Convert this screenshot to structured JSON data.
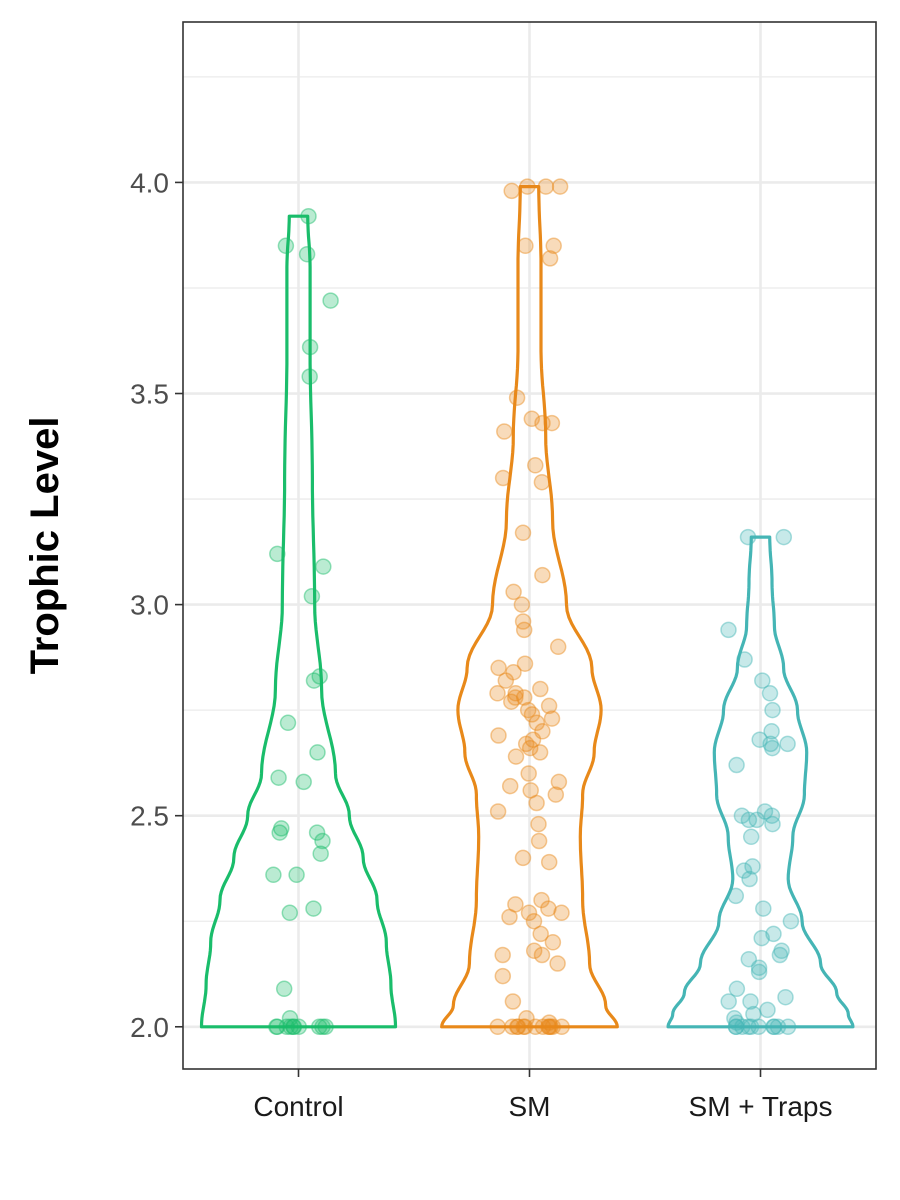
{
  "chart_data": {
    "type": "violin",
    "title": "",
    "xlabel": "",
    "ylabel": "Trophic Level",
    "ylim": [
      1.9,
      4.38
    ],
    "yticks": [
      2.0,
      2.5,
      3.0,
      3.5,
      4.0
    ],
    "ytick_labels": [
      "2.0",
      "2.5",
      "3.0",
      "3.5",
      "4.0"
    ],
    "grid": true,
    "legend": "none",
    "categories": [
      "Control",
      "SM",
      "SM + Traps"
    ],
    "series": [
      {
        "category": "Control",
        "color": "#1ABD6B",
        "values": [
          3.92,
          3.85,
          3.83,
          3.72,
          3.61,
          3.54,
          3.12,
          3.09,
          3.02,
          2.83,
          2.82,
          2.72,
          2.65,
          2.59,
          2.58,
          2.47,
          2.46,
          2.46,
          2.44,
          2.41,
          2.36,
          2.36,
          2.28,
          2.27,
          2.09,
          2.02,
          2.0,
          2.0,
          2.0,
          2.0,
          2.0,
          2.0,
          2.0,
          2.0,
          2.0,
          2.0
        ],
        "violin": {
          "y": [
            2.0,
            2.1,
            2.2,
            2.3,
            2.4,
            2.5,
            2.6,
            2.8,
            3.0,
            3.3,
            3.6,
            3.8,
            3.92
          ],
          "width": [
            0.42,
            0.4,
            0.38,
            0.34,
            0.28,
            0.22,
            0.16,
            0.1,
            0.07,
            0.06,
            0.05,
            0.05,
            0.04
          ]
        }
      },
      {
        "category": "SM",
        "color": "#E8891A",
        "values": [
          3.99,
          3.99,
          3.99,
          3.98,
          3.85,
          3.85,
          3.82,
          3.49,
          3.44,
          3.43,
          3.43,
          3.41,
          3.33,
          3.3,
          3.29,
          3.17,
          3.07,
          3.03,
          3.0,
          2.96,
          2.94,
          2.9,
          2.86,
          2.85,
          2.84,
          2.82,
          2.8,
          2.79,
          2.79,
          2.78,
          2.78,
          2.77,
          2.76,
          2.75,
          2.74,
          2.73,
          2.72,
          2.7,
          2.69,
          2.68,
          2.67,
          2.66,
          2.65,
          2.64,
          2.6,
          2.58,
          2.57,
          2.56,
          2.55,
          2.53,
          2.51,
          2.48,
          2.44,
          2.4,
          2.39,
          2.3,
          2.29,
          2.28,
          2.27,
          2.27,
          2.26,
          2.25,
          2.22,
          2.2,
          2.18,
          2.17,
          2.17,
          2.15,
          2.12,
          2.06,
          2.02,
          2.01,
          2.0,
          2.0,
          2.0,
          2.0,
          2.0,
          2.0,
          2.0,
          2.0,
          2.0,
          2.0,
          2.0,
          2.0,
          2.0
        ],
        "violin": {
          "y": [
            2.0,
            2.05,
            2.15,
            2.3,
            2.45,
            2.55,
            2.65,
            2.75,
            2.85,
            3.0,
            3.2,
            3.4,
            3.6,
            3.8,
            3.99
          ],
          "width": [
            0.38,
            0.33,
            0.26,
            0.23,
            0.22,
            0.23,
            0.28,
            0.31,
            0.27,
            0.16,
            0.1,
            0.07,
            0.05,
            0.05,
            0.04
          ]
        }
      },
      {
        "category": "SM + Traps",
        "color": "#45B5B5",
        "values": [
          3.16,
          3.16,
          2.94,
          2.87,
          2.82,
          2.79,
          2.75,
          2.7,
          2.68,
          2.67,
          2.67,
          2.66,
          2.62,
          2.51,
          2.5,
          2.5,
          2.49,
          2.49,
          2.48,
          2.45,
          2.38,
          2.37,
          2.35,
          2.31,
          2.28,
          2.25,
          2.22,
          2.21,
          2.18,
          2.17,
          2.16,
          2.14,
          2.13,
          2.09,
          2.07,
          2.06,
          2.06,
          2.04,
          2.03,
          2.02,
          2.01,
          2.0,
          2.0,
          2.0,
          2.0,
          2.0,
          2.0,
          2.0,
          2.0,
          2.0,
          2.0
        ],
        "violin": {
          "y": [
            2.0,
            2.03,
            2.08,
            2.15,
            2.25,
            2.35,
            2.45,
            2.55,
            2.65,
            2.75,
            2.85,
            2.95,
            3.05,
            3.16
          ],
          "width": [
            0.4,
            0.38,
            0.33,
            0.26,
            0.18,
            0.12,
            0.14,
            0.19,
            0.2,
            0.16,
            0.1,
            0.06,
            0.05,
            0.04
          ]
        }
      }
    ]
  }
}
